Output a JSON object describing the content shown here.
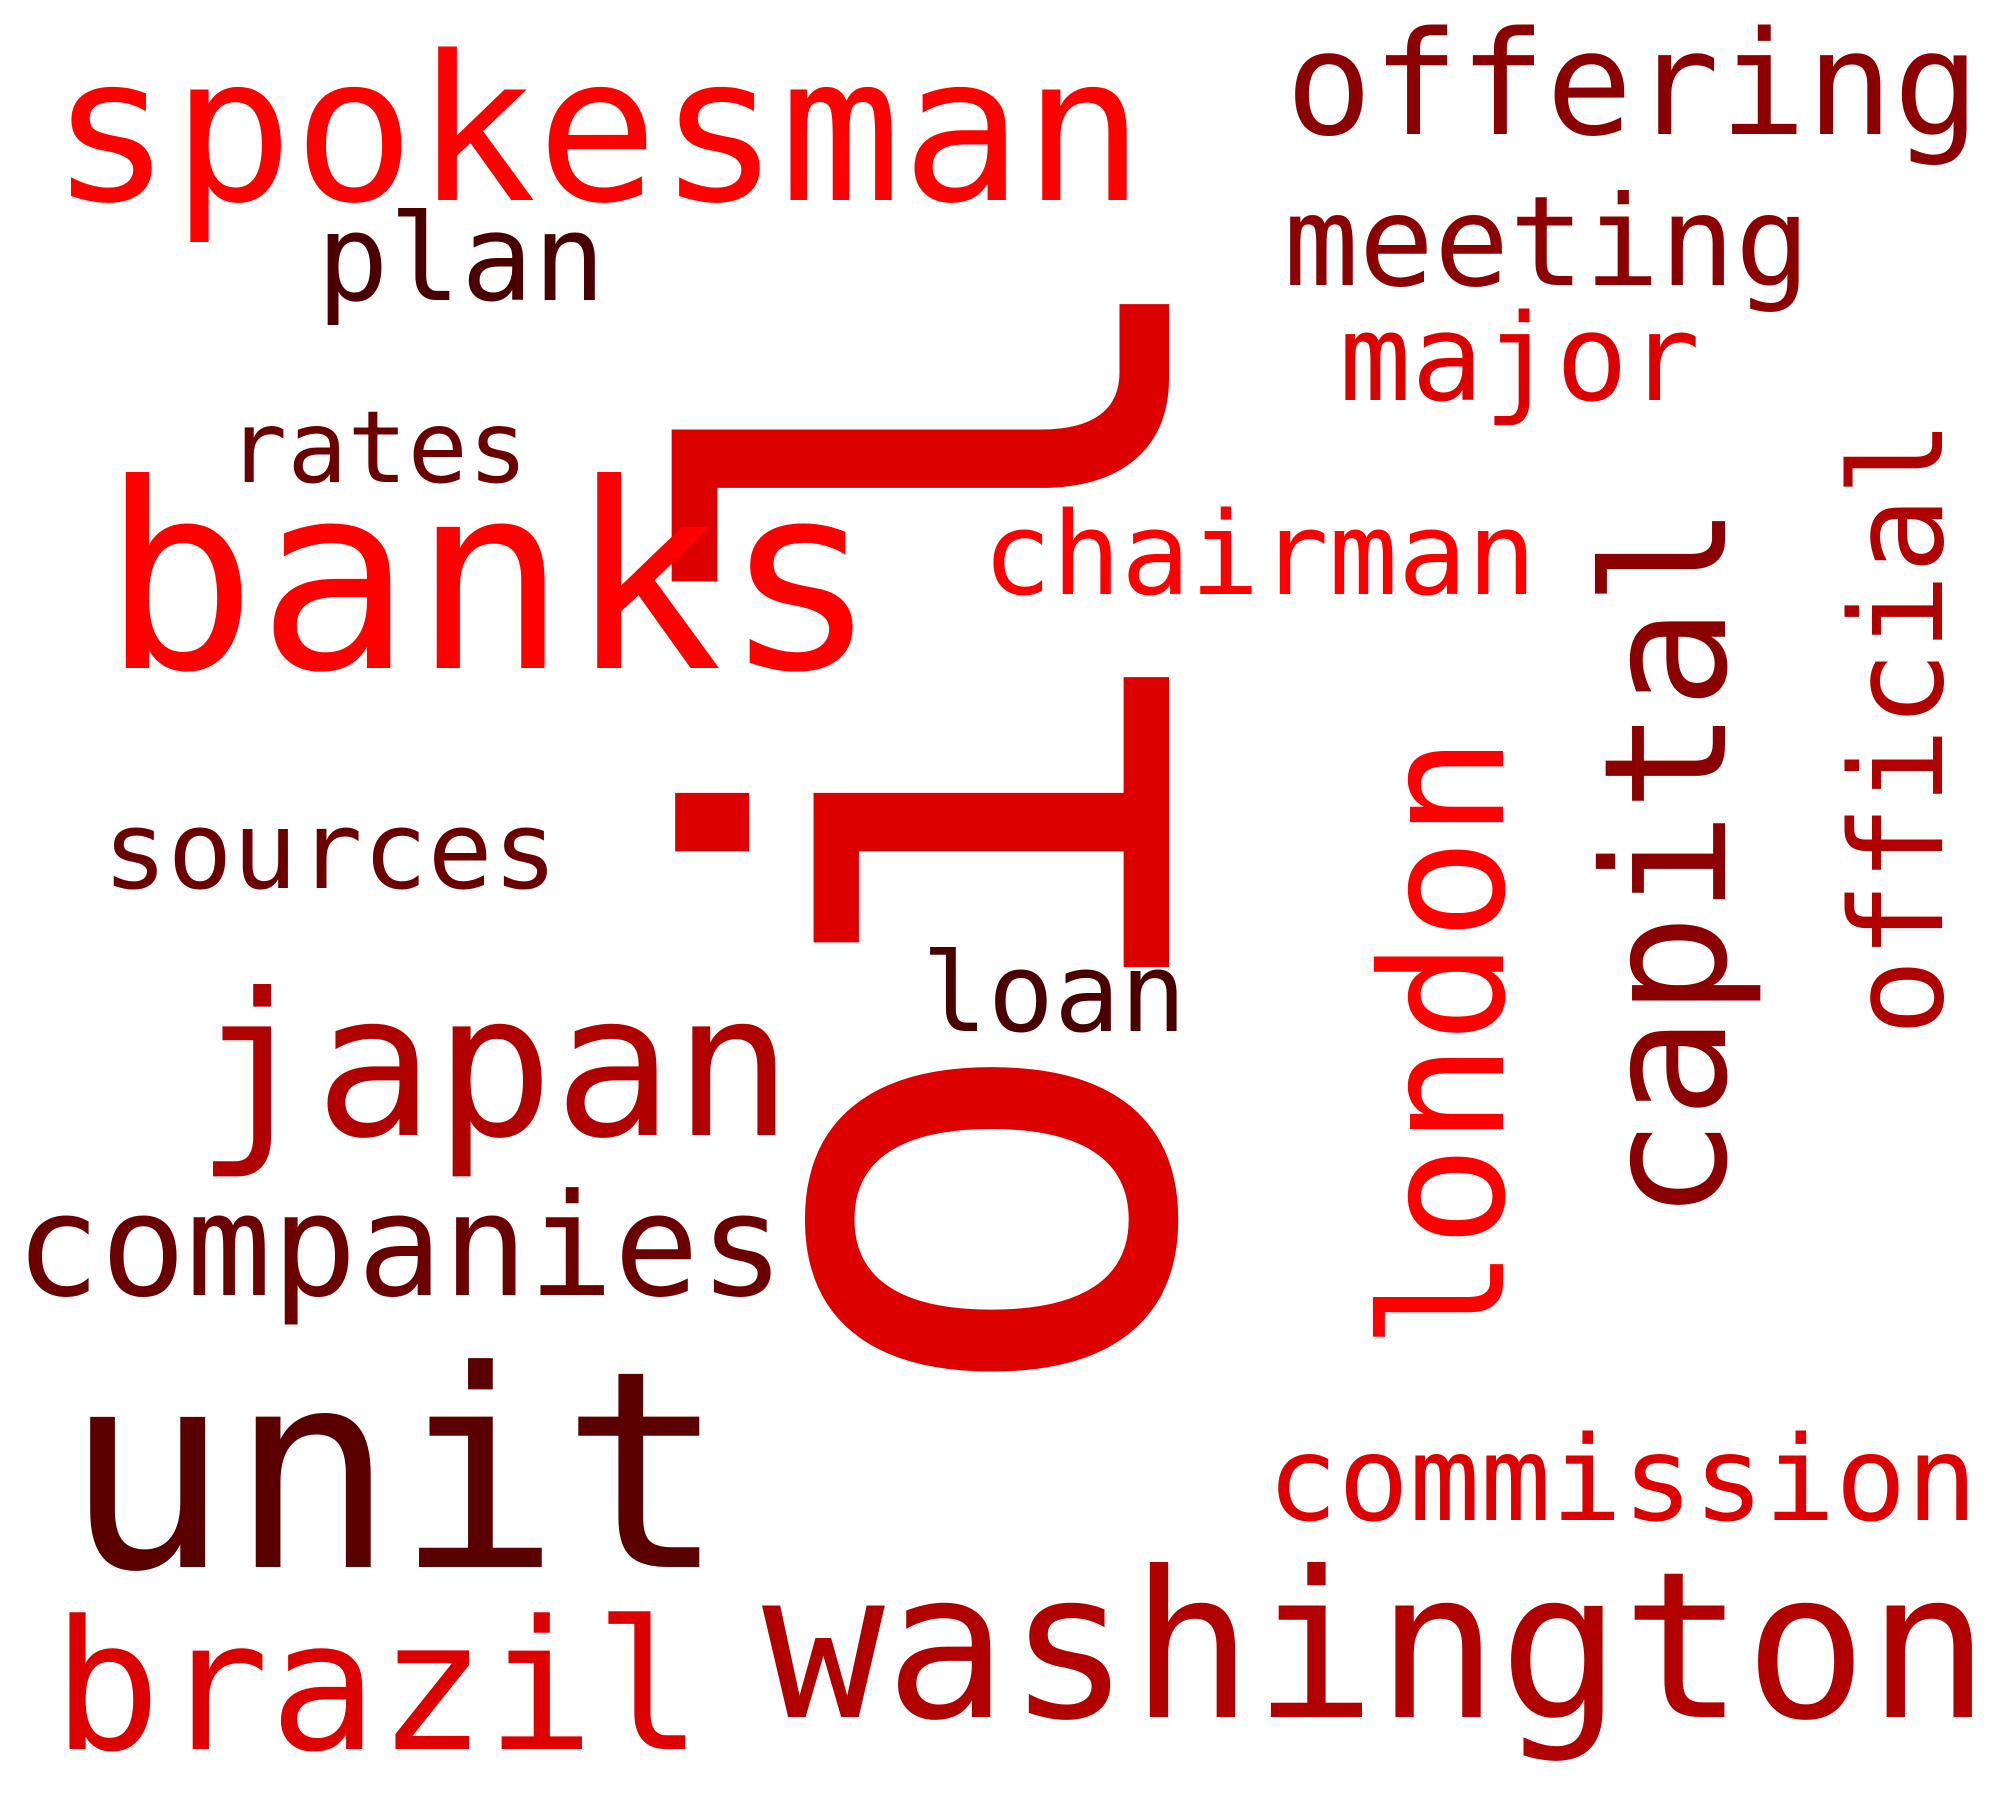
{
  "word_cloud": {
    "words": [
      {
        "text": "oil",
        "color": "#dd0000",
        "orientation": "vertical"
      },
      {
        "text": "banks",
        "color": "#ff0000",
        "orientation": "horizontal"
      },
      {
        "text": "unit",
        "color": "#5a0000",
        "orientation": "horizontal"
      },
      {
        "text": "spokesman",
        "color": "#ff0000",
        "orientation": "horizontal"
      },
      {
        "text": "washington",
        "color": "#b00000",
        "orientation": "horizontal"
      },
      {
        "text": "japan",
        "color": "#b00000",
        "orientation": "horizontal"
      },
      {
        "text": "brazil",
        "color": "#dd0000",
        "orientation": "horizontal"
      },
      {
        "text": "official",
        "color": "#b00000",
        "orientation": "vertical"
      },
      {
        "text": "capital",
        "color": "#8b0000",
        "orientation": "vertical"
      },
      {
        "text": "london",
        "color": "#ff0000",
        "orientation": "vertical"
      },
      {
        "text": "offering",
        "color": "#8b0000",
        "orientation": "horizontal"
      },
      {
        "text": "companies",
        "color": "#6b0000",
        "orientation": "horizontal"
      },
      {
        "text": "commission",
        "color": "#dd0000",
        "orientation": "horizontal"
      },
      {
        "text": "meeting",
        "color": "#8b0000",
        "orientation": "horizontal"
      },
      {
        "text": "plan",
        "color": "#4a0000",
        "orientation": "horizontal"
      },
      {
        "text": "major",
        "color": "#dd0000",
        "orientation": "horizontal"
      },
      {
        "text": "rates",
        "color": "#6b0000",
        "orientation": "horizontal"
      },
      {
        "text": "chairman",
        "color": "#ff0000",
        "orientation": "horizontal"
      },
      {
        "text": "sources",
        "color": "#6b0000",
        "orientation": "horizontal"
      },
      {
        "text": "loan",
        "color": "#4a0000",
        "orientation": "horizontal"
      }
    ]
  }
}
